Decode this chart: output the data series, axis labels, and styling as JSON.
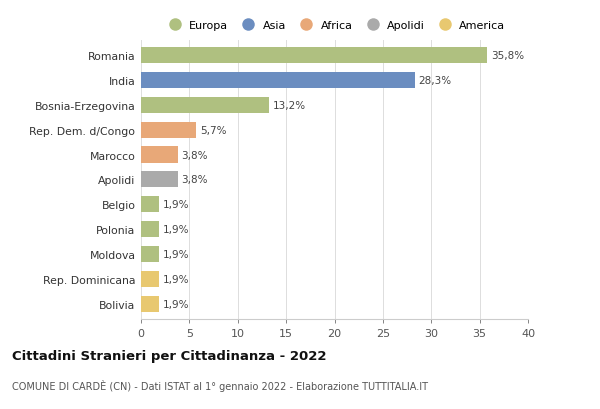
{
  "categories": [
    "Romania",
    "India",
    "Bosnia-Erzegovina",
    "Rep. Dem. d/Congo",
    "Marocco",
    "Apolidi",
    "Belgio",
    "Polonia",
    "Moldova",
    "Rep. Dominicana",
    "Bolivia"
  ],
  "values": [
    35.8,
    28.3,
    13.2,
    5.7,
    3.8,
    3.8,
    1.9,
    1.9,
    1.9,
    1.9,
    1.9
  ],
  "labels": [
    "35,8%",
    "28,3%",
    "13,2%",
    "5,7%",
    "3,8%",
    "3,8%",
    "1,9%",
    "1,9%",
    "1,9%",
    "1,9%",
    "1,9%"
  ],
  "colors": [
    "#afc080",
    "#6b8dc0",
    "#afc080",
    "#e8a878",
    "#e8a878",
    "#aaaaaa",
    "#afc080",
    "#afc080",
    "#afc080",
    "#e8c870",
    "#e8c870"
  ],
  "legend_labels": [
    "Europa",
    "Asia",
    "Africa",
    "Apolidi",
    "America"
  ],
  "legend_colors": [
    "#afc080",
    "#6b8dc0",
    "#e8a878",
    "#aaaaaa",
    "#e8c870"
  ],
  "xlim": [
    0,
    40
  ],
  "xticks": [
    0,
    5,
    10,
    15,
    20,
    25,
    30,
    35,
    40
  ],
  "title": "Cittadini Stranieri per Cittadinanza - 2022",
  "subtitle": "COMUNE DI CARDÈ (CN) - Dati ISTAT al 1° gennaio 2022 - Elaborazione TUTTITALIA.IT",
  "background_color": "#ffffff",
  "grid_color": "#dddddd",
  "bar_height": 0.65
}
